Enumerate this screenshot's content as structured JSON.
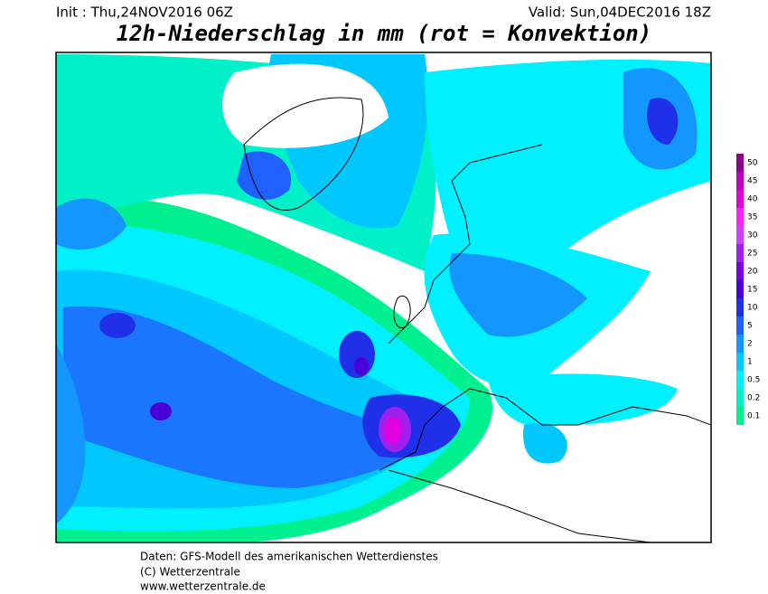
{
  "header": {
    "init": "Init : Thu,24NOV2016 06Z",
    "valid": "Valid: Sun,04DEC2016 18Z",
    "title": "12h-Niederschlag in mm (rot = Konvektion)"
  },
  "legend": [
    {
      "label": "50",
      "color": "#8a008a"
    },
    {
      "label": "45",
      "color": "#c000c0"
    },
    {
      "label": "40",
      "color": "#e000e0"
    },
    {
      "label": "35",
      "color": "#ff20ff"
    },
    {
      "label": "30",
      "color": "#d040ff"
    },
    {
      "label": "25",
      "color": "#a020f0"
    },
    {
      "label": "20",
      "color": "#7a00e0"
    },
    {
      "label": "15",
      "color": "#4a00d8"
    },
    {
      "label": "10",
      "color": "#2030e8"
    },
    {
      "label": "5",
      "color": "#2060ff"
    },
    {
      "label": "2",
      "color": "#1496ff"
    },
    {
      "label": "1",
      "color": "#00c8ff"
    },
    {
      "label": "0.5",
      "color": "#00f0ff"
    },
    {
      "label": "0.2",
      "color": "#00f0c8"
    },
    {
      "label": "0.1",
      "color": "#00f090"
    }
  ],
  "footer": {
    "line1": "Daten: GFS-Modell des amerikanischen Wetterdienstes",
    "line2": "(C) Wetterzentrale",
    "line3": "www.wetterzentrale.de"
  }
}
